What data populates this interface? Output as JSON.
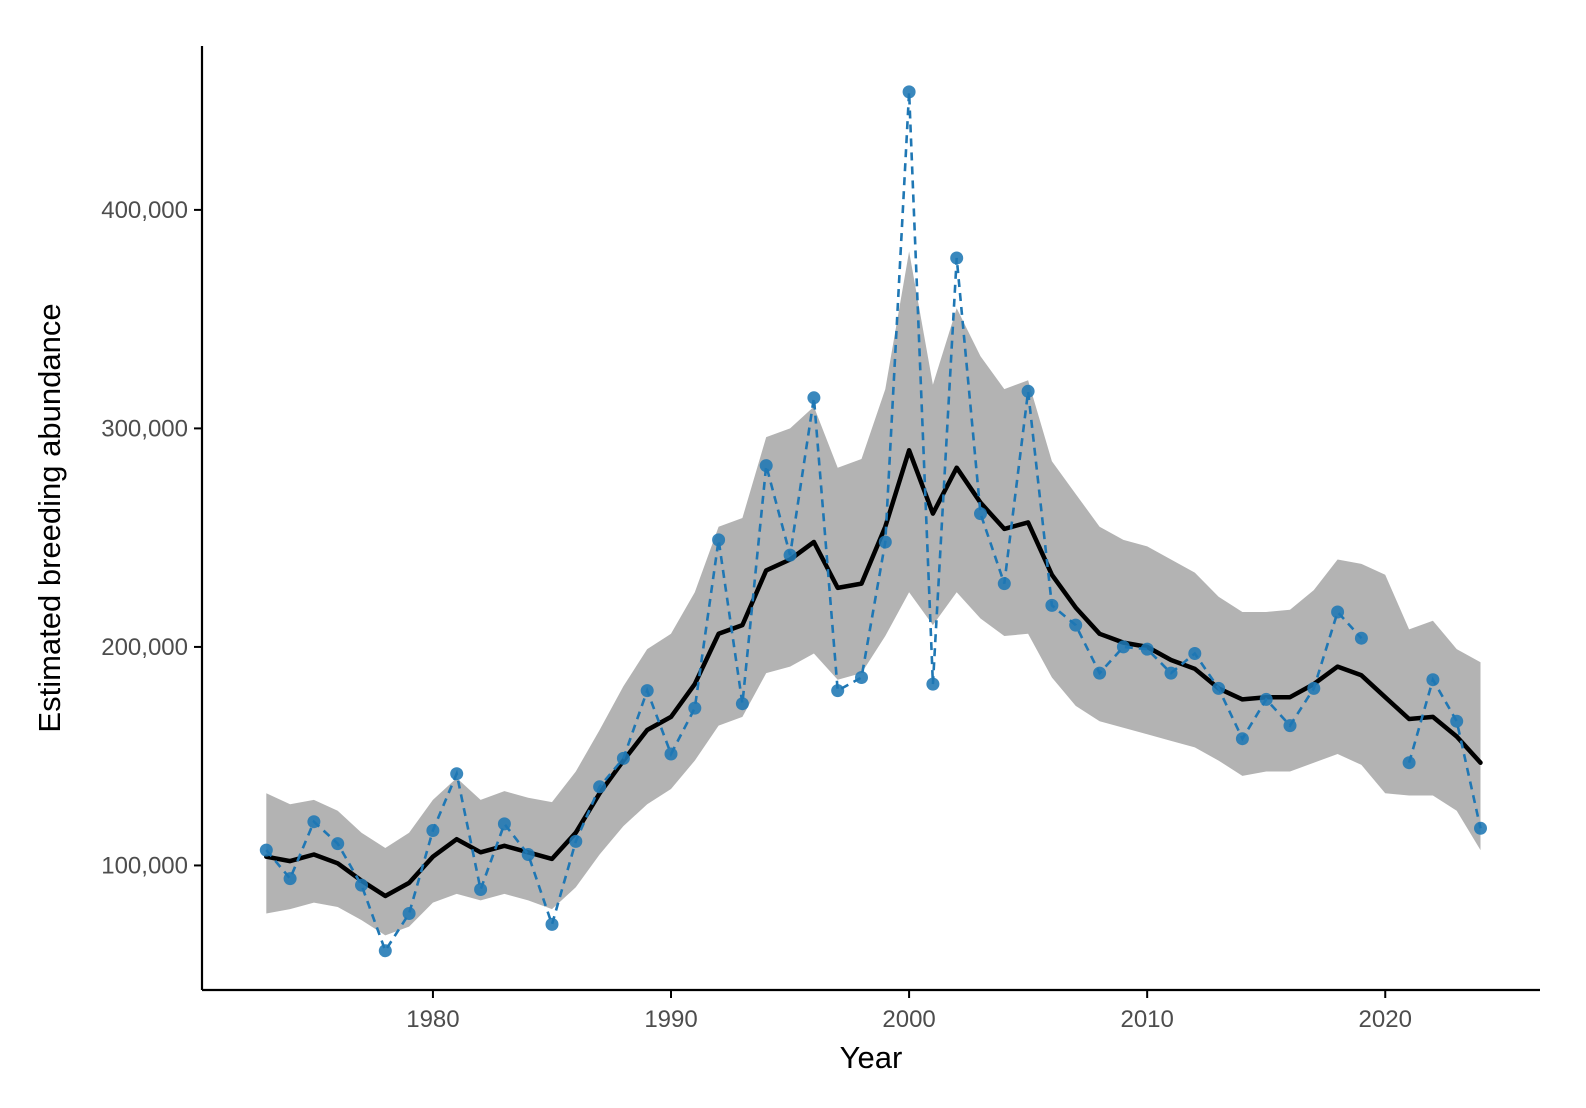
{
  "chart_data": {
    "type": "line",
    "title": "",
    "xlabel": "Year",
    "ylabel": "Estimated  breeding abundance",
    "xlim": [
      1970.3,
      2026.5
    ],
    "ylim": [
      43000,
      475000
    ],
    "x_ticks": [
      1980,
      1990,
      2000,
      2010,
      2020
    ],
    "x_tick_labels": [
      "1980",
      "1990",
      "2000",
      "2010",
      "2020"
    ],
    "y_ticks": [
      100000,
      200000,
      300000,
      400000
    ],
    "y_tick_labels": [
      "100,000",
      "200,000",
      "300,000",
      "400,000"
    ],
    "grid": false,
    "legend": "none",
    "colors": {
      "band": "#b3b3b3",
      "trend": "#000000",
      "observed": "#1f77b4",
      "axis": "#000000"
    },
    "series": [
      {
        "role": "ribbon",
        "x": [
          1973,
          1974,
          1975,
          1976,
          1977,
          1978,
          1979,
          1980,
          1981,
          1982,
          1983,
          1984,
          1985,
          1986,
          1987,
          1988,
          1989,
          1990,
          1991,
          1992,
          1993,
          1994,
          1995,
          1996,
          1997,
          1998,
          1999,
          2000,
          2001,
          2002,
          2003,
          2004,
          2005,
          2006,
          2007,
          2008,
          2009,
          2010,
          2011,
          2012,
          2013,
          2014,
          2015,
          2016,
          2017,
          2018,
          2019,
          2020,
          2021,
          2022,
          2023,
          2024
        ],
        "lower": [
          78000,
          80000,
          83000,
          81000,
          75000,
          68000,
          72000,
          83000,
          87000,
          84000,
          87000,
          84000,
          80000,
          90000,
          105000,
          118000,
          128000,
          135000,
          148000,
          164000,
          168000,
          188000,
          191000,
          197000,
          185000,
          188000,
          205000,
          225000,
          210000,
          225000,
          213000,
          205000,
          206000,
          186000,
          173000,
          166000,
          163000,
          160000,
          157000,
          154000,
          148000,
          141000,
          143000,
          143000,
          147000,
          151000,
          146000,
          133000,
          132000,
          132000,
          125000,
          107000
        ],
        "upper": [
          133000,
          128000,
          130000,
          125000,
          115000,
          108000,
          115000,
          130000,
          140000,
          130000,
          134000,
          131000,
          129000,
          143000,
          162000,
          182000,
          199000,
          206000,
          225000,
          255000,
          259000,
          296000,
          300000,
          310000,
          282000,
          286000,
          318000,
          381000,
          320000,
          355000,
          333000,
          318000,
          322000,
          285000,
          270000,
          255000,
          249000,
          246000,
          240000,
          234000,
          223000,
          216000,
          216000,
          217000,
          226000,
          240000,
          238000,
          233000,
          208000,
          212000,
          199000,
          193000
        ]
      },
      {
        "role": "trend",
        "x": [
          1973,
          1974,
          1975,
          1976,
          1977,
          1978,
          1979,
          1980,
          1981,
          1982,
          1983,
          1984,
          1985,
          1986,
          1987,
          1988,
          1989,
          1990,
          1991,
          1992,
          1993,
          1994,
          1995,
          1996,
          1997,
          1998,
          1999,
          2000,
          2001,
          2002,
          2003,
          2004,
          2005,
          2006,
          2007,
          2008,
          2009,
          2010,
          2011,
          2012,
          2013,
          2014,
          2015,
          2016,
          2017,
          2018,
          2019,
          2020,
          2021,
          2022,
          2023,
          2024
        ],
        "y": [
          104000,
          102000,
          105000,
          101000,
          93000,
          86000,
          92000,
          104000,
          112000,
          106000,
          109000,
          106000,
          103000,
          115000,
          133000,
          148000,
          162000,
          168000,
          183000,
          206000,
          210000,
          235000,
          240000,
          248000,
          227000,
          229000,
          255000,
          290000,
          261000,
          282000,
          266000,
          254000,
          257000,
          233000,
          218000,
          206000,
          202000,
          200000,
          194000,
          190000,
          181000,
          176000,
          177000,
          177000,
          183000,
          191000,
          187000,
          177000,
          167000,
          168000,
          159000,
          147000
        ]
      },
      {
        "role": "observed",
        "x": [
          1973,
          1974,
          1975,
          1976,
          1977,
          1978,
          1979,
          1980,
          1981,
          1982,
          1983,
          1984,
          1985,
          1986,
          1987,
          1988,
          1989,
          1990,
          1991,
          1992,
          1993,
          1994,
          1995,
          1996,
          1997,
          1998,
          1999,
          2000,
          2001,
          2002,
          2003,
          2004,
          2005,
          2006,
          2007,
          2008,
          2009,
          2010,
          2011,
          2012,
          2013,
          2014,
          2015,
          2016,
          2017,
          2018,
          2019,
          2021,
          2022,
          2023,
          2024
        ],
        "y": [
          107000,
          94000,
          120000,
          110000,
          91000,
          61000,
          78000,
          116000,
          142000,
          89000,
          119000,
          105000,
          73000,
          111000,
          136000,
          149000,
          180000,
          151000,
          172000,
          249000,
          174000,
          283000,
          242000,
          314000,
          180000,
          186000,
          248000,
          454000,
          183000,
          378000,
          261000,
          229000,
          317000,
          219000,
          210000,
          188000,
          200000,
          199000,
          188000,
          197000,
          181000,
          158000,
          176000,
          164000,
          181000,
          216000,
          204000,
          147000,
          185000,
          166000,
          117000
        ]
      }
    ]
  }
}
